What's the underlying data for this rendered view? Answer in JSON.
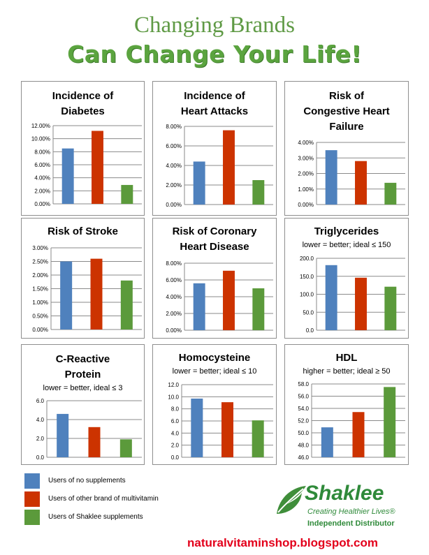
{
  "header": {
    "title_line1": "Changing Brands",
    "title_line2": "Can Change Your Life!"
  },
  "colors": {
    "no_supplements": "#4f81bd",
    "other_brand": "#cc3300",
    "shaklee": "#5b9a3b"
  },
  "chart_data": [
    {
      "type": "bar",
      "title_lines": [
        "Incidence of",
        "Diabetes"
      ],
      "subtitle": "",
      "categories": [
        "Users of no supplements",
        "Users of other brand of multivitamin",
        "Users of Shaklee supplements"
      ],
      "values": [
        8.5,
        11.2,
        2.9
      ],
      "ylim": [
        0,
        12
      ],
      "ticks": [
        "0.00%",
        "2.00%",
        "4.00%",
        "6.00%",
        "8.00%",
        "10.00%",
        "12.00%"
      ],
      "grid": true
    },
    {
      "type": "bar",
      "title_lines": [
        "Incidence of",
        "Heart Attacks"
      ],
      "subtitle": "",
      "categories": [
        "Users of no supplements",
        "Users of other brand of multivitamin",
        "Users of Shaklee supplements"
      ],
      "values": [
        4.4,
        7.6,
        2.5
      ],
      "ylim": [
        0,
        8
      ],
      "ticks": [
        "0.00%",
        "2.00%",
        "4.00%",
        "6.00%",
        "8.00%"
      ],
      "grid": true
    },
    {
      "type": "bar",
      "title_lines": [
        "Risk of",
        "Congestive Heart",
        "Failure"
      ],
      "subtitle": "",
      "categories": [
        "Users of no supplements",
        "Users of other brand of multivitamin",
        "Users of Shaklee supplements"
      ],
      "values": [
        3.5,
        2.8,
        1.4
      ],
      "ylim": [
        0,
        4
      ],
      "ticks": [
        "0.00%",
        "1.00%",
        "2.00%",
        "3.00%",
        "4.00%"
      ],
      "grid": true
    },
    {
      "type": "bar",
      "title_lines": [
        "Risk of Stroke"
      ],
      "subtitle": "",
      "categories": [
        "Users of no supplements",
        "Users of other brand of multivitamin",
        "Users of Shaklee supplements"
      ],
      "values": [
        2.5,
        2.6,
        1.8
      ],
      "ylim": [
        0,
        3
      ],
      "ticks": [
        "0.00%",
        "0.50%",
        "1.00%",
        "1.50%",
        "2.00%",
        "2.50%",
        "3.00%"
      ],
      "grid": true
    },
    {
      "type": "bar",
      "title_lines": [
        "Risk of Coronary",
        "Heart Disease"
      ],
      "subtitle": "",
      "categories": [
        "Users of no supplements",
        "Users of other brand of multivitamin",
        "Users of Shaklee supplements"
      ],
      "values": [
        5.6,
        7.1,
        5.0
      ],
      "ylim": [
        0,
        8
      ],
      "ticks": [
        "0.00%",
        "2.00%",
        "4.00%",
        "6.00%",
        "8.00%"
      ],
      "grid": true
    },
    {
      "type": "bar",
      "title_lines": [
        "Triglycerides"
      ],
      "subtitle": "lower = better; ideal ≤ 150",
      "categories": [
        "Users of no supplements",
        "Users of other brand of multivitamin",
        "Users of Shaklee supplements"
      ],
      "values": [
        181,
        146,
        121
      ],
      "ylim": [
        0,
        200
      ],
      "ticks": [
        "0.0",
        "50.0",
        "100.0",
        "150.0",
        "200.0"
      ],
      "grid": true
    },
    {
      "type": "bar",
      "title_lines": [
        "C-Reactive",
        "Protein"
      ],
      "subtitle": "lower = better, ideal  ≤ 3",
      "categories": [
        "Users of no supplements",
        "Users of other brand of multivitamin",
        "Users of Shaklee supplements"
      ],
      "values": [
        4.6,
        3.2,
        1.9
      ],
      "ylim": [
        0,
        6
      ],
      "ticks": [
        "0.0",
        "2.0",
        "4.0",
        "6.0"
      ],
      "grid": true
    },
    {
      "type": "bar",
      "title_lines": [
        "Homocysteine"
      ],
      "subtitle": "lower = better; ideal ≤ 10",
      "categories": [
        "Users of no supplements",
        "Users of other brand of multivitamin",
        "Users of Shaklee supplements"
      ],
      "values": [
        9.7,
        9.1,
        6.1
      ],
      "ylim": [
        0,
        12
      ],
      "ticks": [
        "0.0",
        "2.0",
        "4.0",
        "6.0",
        "8.0",
        "10.0",
        "12.0"
      ],
      "grid": true
    },
    {
      "type": "bar",
      "title_lines": [
        "HDL"
      ],
      "subtitle": "higher = better; ideal ≥ 50",
      "categories": [
        "Users of no supplements",
        "Users of other brand of multivitamin",
        "Users of Shaklee supplements"
      ],
      "values": [
        50.9,
        53.4,
        57.5
      ],
      "ylim": [
        46,
        58
      ],
      "ticks": [
        "46.0",
        "48.0",
        "50.0",
        "52.0",
        "54.0",
        "56.0",
        "58.0"
      ],
      "grid": true
    }
  ],
  "legend": [
    {
      "label": "Users of no supplements",
      "color": "#4f81bd"
    },
    {
      "label": "Users of other brand of multivitamin",
      "color": "#cc3300"
    },
    {
      "label": "Users of Shaklee supplements",
      "color": "#5b9a3b"
    }
  ],
  "logo": {
    "wordmark": "Shaklee",
    "tagline": "Creating Healthier Lives®",
    "distributor": "Independent Distributor"
  },
  "footer": {
    "url": "naturalvitaminshop.blogspot.com"
  }
}
